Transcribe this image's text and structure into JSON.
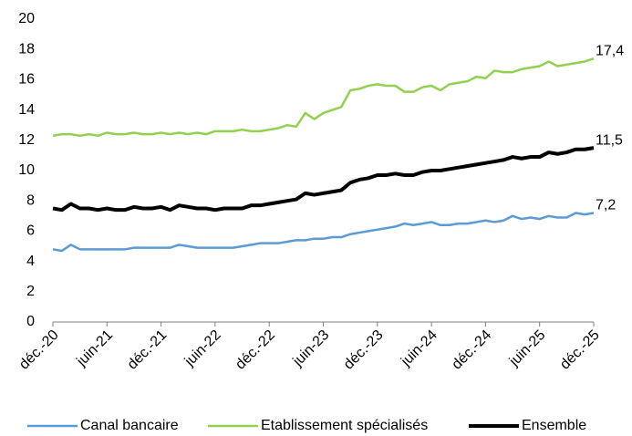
{
  "chart_data": {
    "type": "line",
    "categories": [
      "déc.-20",
      null,
      null,
      null,
      null,
      null,
      "juin-21",
      null,
      null,
      null,
      null,
      null,
      "déc.-21",
      null,
      null,
      null,
      null,
      null,
      "juin-22",
      null,
      null,
      null,
      null,
      null,
      "déc.-22",
      null,
      null,
      null,
      null,
      null,
      "juin-23",
      null,
      null,
      null,
      null,
      null,
      "déc.-23",
      null,
      null,
      null,
      null,
      null,
      "juin-24",
      null,
      null,
      null,
      null,
      null,
      "déc.-24",
      null,
      null,
      null,
      null,
      null,
      "juin-25",
      null,
      null,
      null,
      null,
      null,
      "déc.-25"
    ],
    "series": [
      {
        "name": "Canal bancaire",
        "color": "#5b9bd5",
        "end_label": "7,2",
        "values": [
          4.8,
          4.7,
          5.1,
          4.8,
          4.8,
          4.8,
          4.8,
          4.8,
          4.8,
          4.9,
          4.9,
          4.9,
          4.9,
          4.9,
          5.1,
          5.0,
          4.9,
          4.9,
          4.9,
          4.9,
          4.9,
          5.0,
          5.1,
          5.2,
          5.2,
          5.2,
          5.3,
          5.4,
          5.4,
          5.5,
          5.5,
          5.6,
          5.6,
          5.8,
          5.9,
          6.0,
          6.1,
          6.2,
          6.3,
          6.5,
          6.4,
          6.5,
          6.6,
          6.4,
          6.4,
          6.5,
          6.5,
          6.6,
          6.7,
          6.6,
          6.7,
          7.0,
          6.8,
          6.9,
          6.8,
          7.0,
          6.9,
          6.9,
          7.2,
          7.1,
          7.2
        ]
      },
      {
        "name": "Etablissement spécialisés",
        "color": "#92d050",
        "end_label": "17,4",
        "values": [
          12.3,
          12.4,
          12.4,
          12.3,
          12.4,
          12.3,
          12.5,
          12.4,
          12.4,
          12.5,
          12.4,
          12.4,
          12.5,
          12.4,
          12.5,
          12.4,
          12.5,
          12.4,
          12.6,
          12.6,
          12.6,
          12.7,
          12.6,
          12.6,
          12.7,
          12.8,
          13.0,
          12.9,
          13.8,
          13.4,
          13.8,
          14.0,
          14.2,
          15.3,
          15.4,
          15.6,
          15.7,
          15.6,
          15.6,
          15.2,
          15.2,
          15.5,
          15.6,
          15.3,
          15.7,
          15.8,
          15.9,
          16.2,
          16.1,
          16.6,
          16.5,
          16.5,
          16.7,
          16.8,
          16.9,
          17.2,
          16.9,
          17.0,
          17.1,
          17.2,
          17.4
        ]
      },
      {
        "name": "Ensemble",
        "color": "#000000",
        "end_label": "11,5",
        "values": [
          7.5,
          7.4,
          7.8,
          7.5,
          7.5,
          7.4,
          7.5,
          7.4,
          7.4,
          7.6,
          7.5,
          7.5,
          7.6,
          7.4,
          7.7,
          7.6,
          7.5,
          7.5,
          7.4,
          7.5,
          7.5,
          7.5,
          7.7,
          7.7,
          7.8,
          7.9,
          8.0,
          8.1,
          8.5,
          8.4,
          8.5,
          8.6,
          8.7,
          9.2,
          9.4,
          9.5,
          9.7,
          9.7,
          9.8,
          9.7,
          9.7,
          9.9,
          10.0,
          10.0,
          10.1,
          10.2,
          10.3,
          10.4,
          10.5,
          10.6,
          10.7,
          10.9,
          10.8,
          10.9,
          10.9,
          11.2,
          11.1,
          11.2,
          11.4,
          11.4,
          11.5
        ]
      }
    ],
    "ylim": [
      0,
      20
    ],
    "yticks": [
      0,
      2,
      4,
      6,
      8,
      10,
      12,
      14,
      16,
      18,
      20
    ],
    "grid": false,
    "legend": "bottom"
  }
}
